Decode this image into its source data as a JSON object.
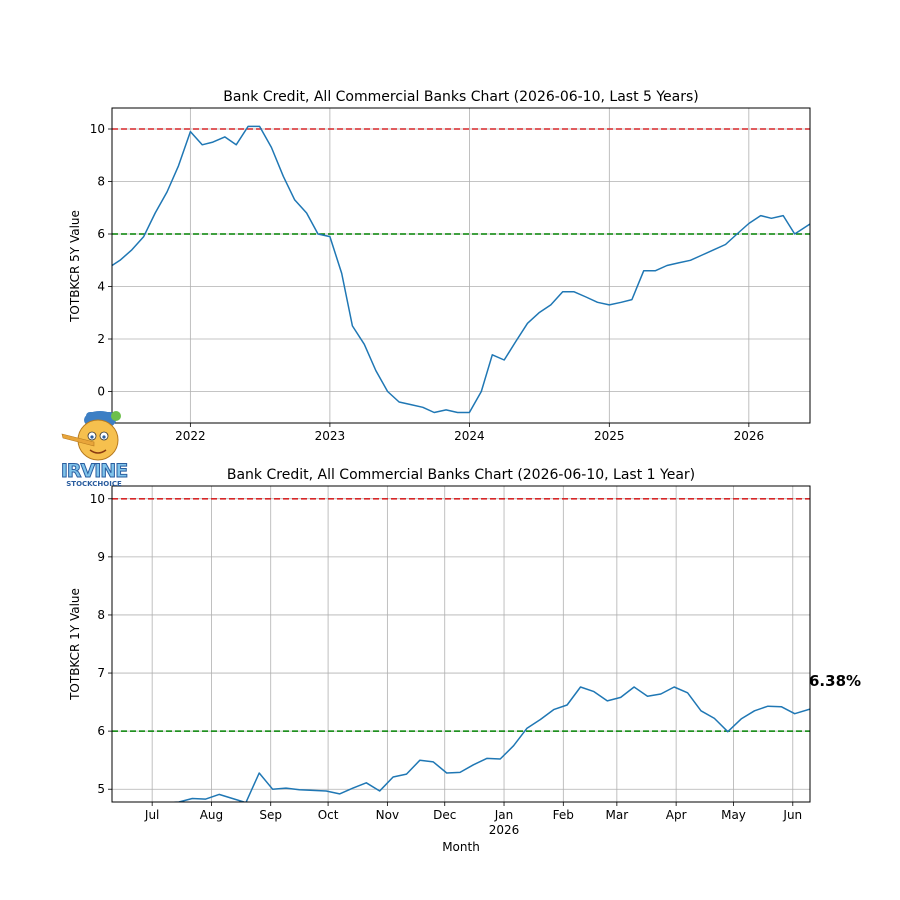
{
  "chart_data": [
    {
      "type": "line",
      "title": "Bank Credit, All Commercial Banks Chart (2026-06-10, Last 5 Years)",
      "xlabel": "",
      "ylabel": "TOTBKCR 5Y Value",
      "xlim": [
        "2021-06-10",
        "2026-06-10"
      ],
      "ylim": [
        -1.2,
        10.8
      ],
      "grid": true,
      "xticks": [
        "2022",
        "2023",
        "2024",
        "2025",
        "2026"
      ],
      "xtick_dates": [
        "2022-01-01",
        "2023-01-01",
        "2024-01-01",
        "2025-01-01",
        "2026-01-01"
      ],
      "yticks": [
        0,
        2,
        4,
        6,
        8,
        10
      ],
      "reference_lines": [
        {
          "y": 10,
          "color": "#d62728",
          "style": "dashed"
        },
        {
          "y": 6,
          "color": "#008000",
          "style": "dashed"
        }
      ],
      "series": [
        {
          "color": "#1f77b4",
          "x": [
            "2021-06-10",
            "2021-07-01",
            "2021-08-01",
            "2021-09-01",
            "2021-10-01",
            "2021-11-01",
            "2021-12-01",
            "2022-01-01",
            "2022-02-01",
            "2022-03-01",
            "2022-04-01",
            "2022-05-01",
            "2022-06-01",
            "2022-07-01",
            "2022-08-01",
            "2022-09-01",
            "2022-10-01",
            "2022-11-01",
            "2022-12-01",
            "2023-01-01",
            "2023-02-01",
            "2023-03-01",
            "2023-04-01",
            "2023-05-01",
            "2023-06-01",
            "2023-07-01",
            "2023-08-01",
            "2023-09-01",
            "2023-10-01",
            "2023-11-01",
            "2023-12-01",
            "2024-01-01",
            "2024-02-01",
            "2024-03-01",
            "2024-04-01",
            "2024-05-01",
            "2024-06-01",
            "2024-07-01",
            "2024-08-01",
            "2024-09-01",
            "2024-10-01",
            "2024-11-01",
            "2024-12-01",
            "2025-01-01",
            "2025-02-01",
            "2025-03-01",
            "2025-04-01",
            "2025-05-01",
            "2025-06-01",
            "2025-07-01",
            "2025-08-01",
            "2025-09-01",
            "2025-10-01",
            "2025-11-01",
            "2025-12-01",
            "2026-01-01",
            "2026-02-01",
            "2026-03-01",
            "2026-04-01",
            "2026-05-01",
            "2026-06-10"
          ],
          "y": [
            4.8,
            5.0,
            5.4,
            5.9,
            6.8,
            7.6,
            8.6,
            9.9,
            9.4,
            9.5,
            9.7,
            9.4,
            10.1,
            10.1,
            9.3,
            8.2,
            7.3,
            6.8,
            6.0,
            5.9,
            4.5,
            2.5,
            1.8,
            0.8,
            0.0,
            -0.4,
            -0.5,
            -0.6,
            -0.8,
            -0.7,
            -0.8,
            -0.8,
            0.0,
            1.4,
            1.2,
            1.9,
            2.6,
            3.0,
            3.3,
            3.8,
            3.8,
            3.6,
            3.4,
            3.3,
            3.4,
            3.5,
            4.6,
            4.6,
            4.8,
            4.9,
            5.0,
            5.2,
            5.4,
            5.6,
            6.0,
            6.4,
            6.7,
            6.6,
            6.7,
            6.0,
            6.38
          ]
        }
      ]
    },
    {
      "type": "line",
      "title": "Bank Credit, All Commercial Banks Chart (2026-06-10, Last 1 Year)",
      "xlabel": "Month",
      "ylabel": "TOTBKCR 1Y Value",
      "xlim": [
        "2025-06-10",
        "2026-06-10"
      ],
      "ylim": [
        4.78,
        10.22
      ],
      "grid": true,
      "xticks": [
        "Jul",
        "Aug",
        "Sep",
        "Oct",
        "Nov",
        "Dec",
        "Jan",
        "Feb",
        "Mar",
        "Apr",
        "May",
        "Jun"
      ],
      "xtick_dates": [
        "2025-07-01",
        "2025-08-01",
        "2025-09-01",
        "2025-10-01",
        "2025-11-01",
        "2025-12-01",
        "2026-01-01",
        "2026-02-01",
        "2026-03-01",
        "2026-04-01",
        "2026-05-01",
        "2026-06-01"
      ],
      "xtick_sublabel": {
        "index": 6,
        "text": "2026"
      },
      "yticks": [
        5,
        6,
        7,
        8,
        9,
        10
      ],
      "reference_lines": [
        {
          "y": 10,
          "color": "#d62728",
          "style": "dashed"
        },
        {
          "y": 6,
          "color": "#008000",
          "style": "dashed"
        }
      ],
      "annotation": "6.38%",
      "series": [
        {
          "color": "#1f77b4",
          "x": [
            "2025-06-10",
            "2025-06-17",
            "2025-06-24",
            "2025-07-01",
            "2025-07-08",
            "2025-07-15",
            "2025-07-22",
            "2025-07-29",
            "2025-08-05",
            "2025-08-12",
            "2025-08-19",
            "2025-08-26",
            "2025-09-02",
            "2025-09-09",
            "2025-09-16",
            "2025-09-23",
            "2025-09-30",
            "2025-10-07",
            "2025-10-14",
            "2025-10-21",
            "2025-10-28",
            "2025-11-04",
            "2025-11-11",
            "2025-11-18",
            "2025-11-25",
            "2025-12-02",
            "2025-12-09",
            "2025-12-16",
            "2025-12-23",
            "2025-12-30",
            "2026-01-06",
            "2026-01-13",
            "2026-01-20",
            "2026-01-27",
            "2026-02-03",
            "2026-02-10",
            "2026-02-17",
            "2026-02-24",
            "2026-03-03",
            "2026-03-10",
            "2026-03-17",
            "2026-03-24",
            "2026-03-31",
            "2026-04-07",
            "2026-04-14",
            "2026-04-21",
            "2026-04-28",
            "2026-05-05",
            "2026-05-12",
            "2026-05-19",
            "2026-05-26",
            "2026-06-02",
            "2026-06-10"
          ],
          "y": [
            4.7,
            4.53,
            4.52,
            4.73,
            4.77,
            4.78,
            4.84,
            4.83,
            4.91,
            4.84,
            4.77,
            5.28,
            5.0,
            5.02,
            4.99,
            4.98,
            4.97,
            4.92,
            5.02,
            5.11,
            4.97,
            5.21,
            5.26,
            5.5,
            5.47,
            5.28,
            5.29,
            5.42,
            5.53,
            5.52,
            5.75,
            6.05,
            6.2,
            6.37,
            6.45,
            6.76,
            6.68,
            6.52,
            6.58,
            6.76,
            6.6,
            6.64,
            6.76,
            6.66,
            6.35,
            6.22,
            5.99,
            6.21,
            6.35,
            6.43,
            6.42,
            6.3,
            6.38
          ]
        }
      ]
    }
  ],
  "logo": {
    "text": "IRVINE",
    "subtext": "STOCKCHOICE"
  }
}
